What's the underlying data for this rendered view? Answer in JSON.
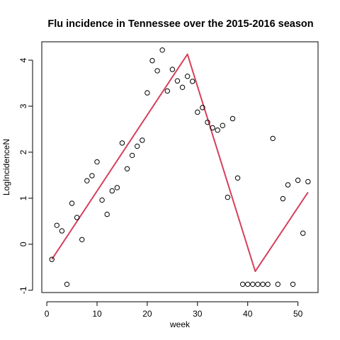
{
  "chart_data": {
    "type": "scatter",
    "title": "Flu incidence in Tennessee over the 2015-2016 season",
    "xlabel": "week",
    "ylabel": "LogIncidenceN",
    "xlim": [
      -1,
      54
    ],
    "ylim": [
      -1.05,
      4.4
    ],
    "xticks": [
      0,
      10,
      20,
      30,
      40,
      50
    ],
    "yticks": [
      -1,
      0,
      1,
      2,
      3,
      4
    ],
    "grid": false,
    "legend": "none",
    "point_color": "#000000",
    "line_color": "#d6405c",
    "series": [
      {
        "kind": "points",
        "x": [
          1,
          2,
          3,
          4,
          5,
          6,
          7,
          8,
          9,
          10,
          11,
          12,
          13,
          14,
          15,
          16,
          17,
          18,
          19,
          20,
          21,
          22,
          23,
          24,
          25,
          26,
          27,
          28,
          29,
          30,
          31,
          32,
          33,
          34,
          35,
          36,
          37,
          38,
          39,
          40,
          41,
          42,
          43,
          44,
          45,
          46,
          47,
          48,
          49,
          50,
          51,
          52
        ],
        "y": [
          -0.33,
          0.41,
          0.29,
          -0.87,
          0.89,
          0.58,
          0.1,
          1.38,
          1.49,
          1.79,
          0.96,
          0.65,
          1.16,
          1.23,
          2.2,
          1.64,
          1.93,
          2.13,
          2.26,
          3.29,
          3.99,
          3.77,
          4.22,
          3.33,
          3.8,
          3.55,
          3.41,
          3.65,
          3.54,
          2.87,
          2.97,
          2.65,
          2.53,
          2.48,
          2.58,
          1.02,
          2.73,
          1.44,
          -0.87,
          -0.87,
          -0.87,
          -0.87,
          -0.87,
          -0.87,
          2.3,
          -0.87,
          0.99,
          1.29,
          -0.87,
          1.39,
          0.24,
          1.36
        ]
      },
      {
        "kind": "line",
        "x": [
          1,
          28,
          41.5,
          52
        ],
        "y": [
          -0.33,
          4.13,
          -0.59,
          1.13
        ]
      }
    ]
  }
}
